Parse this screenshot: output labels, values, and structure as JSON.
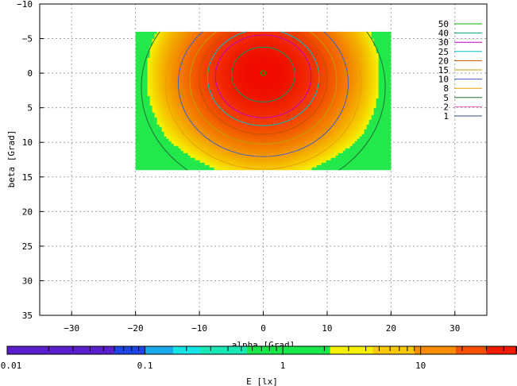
{
  "chart_data": {
    "type": "heatmap",
    "title": "",
    "xlabel": "alpha [Grad]",
    "ylabel": "beta [Grad]",
    "xlim": [
      -35,
      35
    ],
    "ylim": [
      -10,
      35
    ],
    "y_reversed": true,
    "grid": true,
    "xticks": [
      "−30",
      "−20",
      "−10",
      "0",
      "10",
      "20",
      "30"
    ],
    "xtick_values": [
      -30,
      -20,
      -10,
      0,
      10,
      20,
      30
    ],
    "yticks": [
      "−10",
      "−5",
      "0",
      "5",
      "10",
      "15",
      "20",
      "25",
      "30",
      "35"
    ],
    "ytick_values": [
      -10,
      -5,
      0,
      5,
      10,
      15,
      20,
      25,
      30,
      35
    ],
    "data_extent": {
      "alpha": [
        -20,
        20
      ],
      "beta": [
        -6,
        14
      ]
    },
    "peak": {
      "alpha": 0,
      "beta": 0,
      "value": 50
    },
    "contour_levels": [
      {
        "label": "50",
        "value": 50,
        "color": "#00b000"
      },
      {
        "label": "40",
        "value": 40,
        "color": "#00a060"
      },
      {
        "label": "30",
        "value": 30,
        "color": "#c000c0"
      },
      {
        "label": "25",
        "value": 25,
        "color": "#00c0c0"
      },
      {
        "label": "20",
        "value": 20,
        "color": "#c05000"
      },
      {
        "label": "15",
        "value": 15,
        "color": "#c0a000"
      },
      {
        "label": "10",
        "value": 10,
        "color": "#4060c0"
      },
      {
        "label": "8",
        "value": 8,
        "color": "#e8a000"
      },
      {
        "label": "5",
        "value": 5,
        "color": "#207030"
      },
      {
        "label": "2",
        "value": 2,
        "color": "#e060c0"
      },
      {
        "label": "1",
        "value": 1,
        "color": "#305080"
      }
    ],
    "colorbar": {
      "label": "E [lx]",
      "scale": "log",
      "range": [
        0.01,
        50
      ],
      "ticks": [
        {
          "label": "0.01",
          "value": 0.01
        },
        {
          "label": "0.1",
          "value": 0.1
        },
        {
          "label": "1",
          "value": 1
        },
        {
          "label": "10",
          "value": 10
        }
      ],
      "bands": [
        {
          "from": 0.01,
          "to": 0.06,
          "color": "#5a1ecc"
        },
        {
          "from": 0.06,
          "to": 0.1,
          "color": "#1e46e6"
        },
        {
          "from": 0.1,
          "to": 0.16,
          "color": "#1aa8e8"
        },
        {
          "from": 0.16,
          "to": 0.25,
          "color": "#18e4e8"
        },
        {
          "from": 0.25,
          "to": 0.55,
          "color": "#1ae8b4"
        },
        {
          "from": 0.55,
          "to": 2.2,
          "color": "#18e84a"
        },
        {
          "from": 2.2,
          "to": 4.5,
          "color": "#f4f000"
        },
        {
          "from": 4.5,
          "to": 9,
          "color": "#fac800"
        },
        {
          "from": 9,
          "to": 18,
          "color": "#fa8c00"
        },
        {
          "from": 18,
          "to": 30,
          "color": "#f85000"
        },
        {
          "from": 30,
          "to": 50,
          "color": "#f01a00"
        }
      ]
    }
  }
}
